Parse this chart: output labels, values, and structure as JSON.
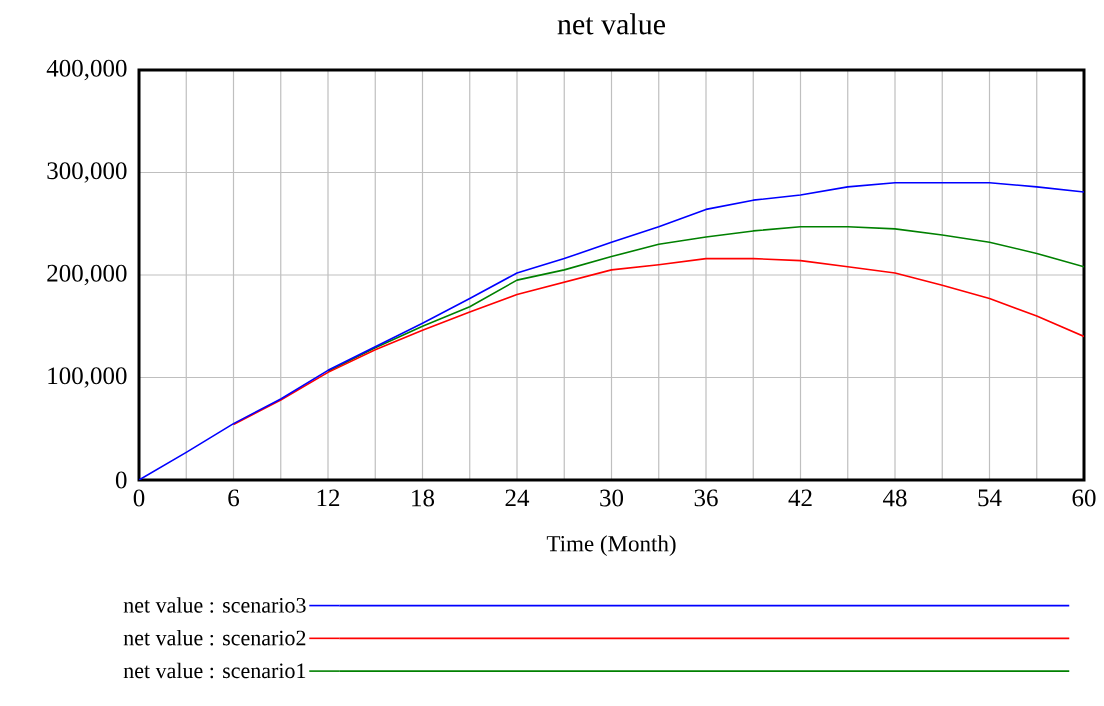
{
  "chart_data": {
    "type": "line",
    "title": "net value",
    "xlabel": "Time (Month)",
    "x": [
      0,
      3,
      6,
      9,
      12,
      15,
      18,
      21,
      24,
      27,
      30,
      33,
      36,
      39,
      42,
      45,
      48,
      51,
      54,
      57,
      60
    ],
    "series": [
      {
        "name": "net value : scenario3",
        "color": "#0000ff",
        "values": [
          0,
          27000,
          55000,
          79000,
          107000,
          130000,
          153000,
          177000,
          202000,
          216000,
          232000,
          247000,
          264000,
          273000,
          278000,
          286000,
          290000,
          290000,
          290000,
          286000,
          281000
        ]
      },
      {
        "name": "net value : scenario2",
        "color": "#ff0000",
        "values": [
          null,
          null,
          54000,
          78000,
          105000,
          127000,
          146000,
          164000,
          181000,
          193000,
          205000,
          210000,
          216000,
          216000,
          214000,
          208000,
          202000,
          190000,
          177000,
          160000,
          140000
        ]
      },
      {
        "name": "net value : scenario1",
        "color": "#008000",
        "values": [
          null,
          null,
          null,
          null,
          106000,
          129000,
          150000,
          169000,
          195000,
          205000,
          218000,
          230000,
          237000,
          243000,
          247000,
          247000,
          245000,
          239000,
          232000,
          221000,
          208000
        ]
      }
    ],
    "xlim": [
      0,
      60
    ],
    "xticks": [
      0,
      {
        "value": 3,
        "label": null
      },
      6,
      {
        "value": 9,
        "label": null
      },
      12,
      {
        "value": 15,
        "label": null
      },
      18,
      {
        "value": 21,
        "label": null
      },
      24,
      {
        "value": 27,
        "label": null
      },
      30,
      {
        "value": 33,
        "label": null
      },
      36,
      {
        "value": 39,
        "label": null
      },
      42,
      {
        "value": 45,
        "label": null
      },
      48,
      {
        "value": 51,
        "label": null
      },
      54,
      {
        "value": 57,
        "label": null
      },
      60
    ],
    "ylim": [
      0,
      400000
    ],
    "yticks": [
      0,
      {
        "value": 100000,
        "label": "100,000"
      },
      {
        "value": 200000,
        "label": "200,000"
      },
      {
        "value": 300000,
        "label": "300,000"
      },
      {
        "value": 400000,
        "label": "400,000"
      }
    ],
    "grid": true,
    "legend": "bottom",
    "marker": "none",
    "line_style": "solid"
  }
}
